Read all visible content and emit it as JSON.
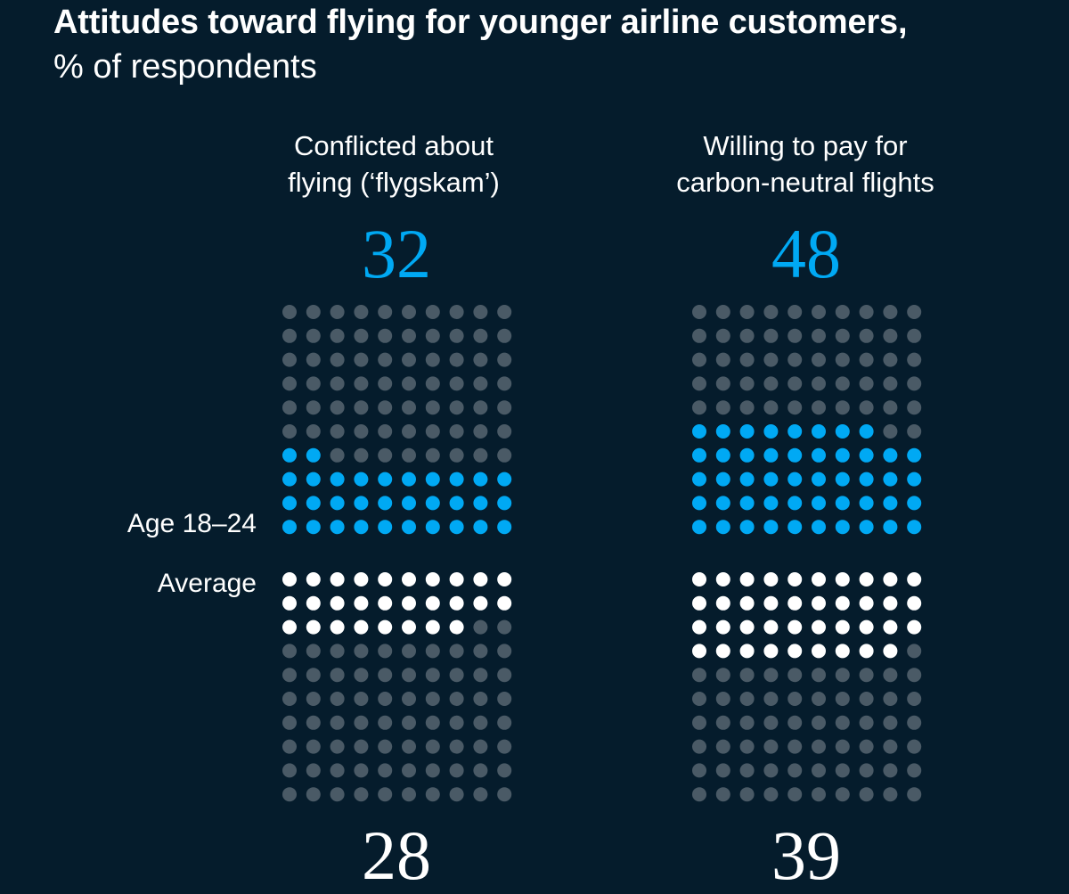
{
  "header": {
    "title": "Attitudes toward flying for younger airline customers,",
    "subtitle": "% of respondents"
  },
  "row_labels": {
    "top": "Age 18–24",
    "bottom": "Average"
  },
  "colors": {
    "background": "#051c2c",
    "age_dot": "#00a9f4",
    "average_dot": "#ffffff",
    "empty_dot": "#4a5a66",
    "accent_text": "#00a9f4"
  },
  "chart_data": {
    "type": "waffle",
    "title": "Attitudes toward flying for younger airline customers, % of respondents",
    "unit": "% of respondents",
    "grid": "10x10 dots per panel, one dot = 1%",
    "panels": [
      {
        "category_lines": [
          "Conflicted about",
          "flying (‘flygskam’)"
        ],
        "series": [
          {
            "name": "Age 18–24",
            "value": 32
          },
          {
            "name": "Average",
            "value": 28
          }
        ]
      },
      {
        "category_lines": [
          "Willing to pay for",
          "carbon-neutral flights"
        ],
        "series": [
          {
            "name": "Age 18–24",
            "value": 48
          },
          {
            "name": "Average",
            "value": 39
          }
        ]
      }
    ]
  }
}
